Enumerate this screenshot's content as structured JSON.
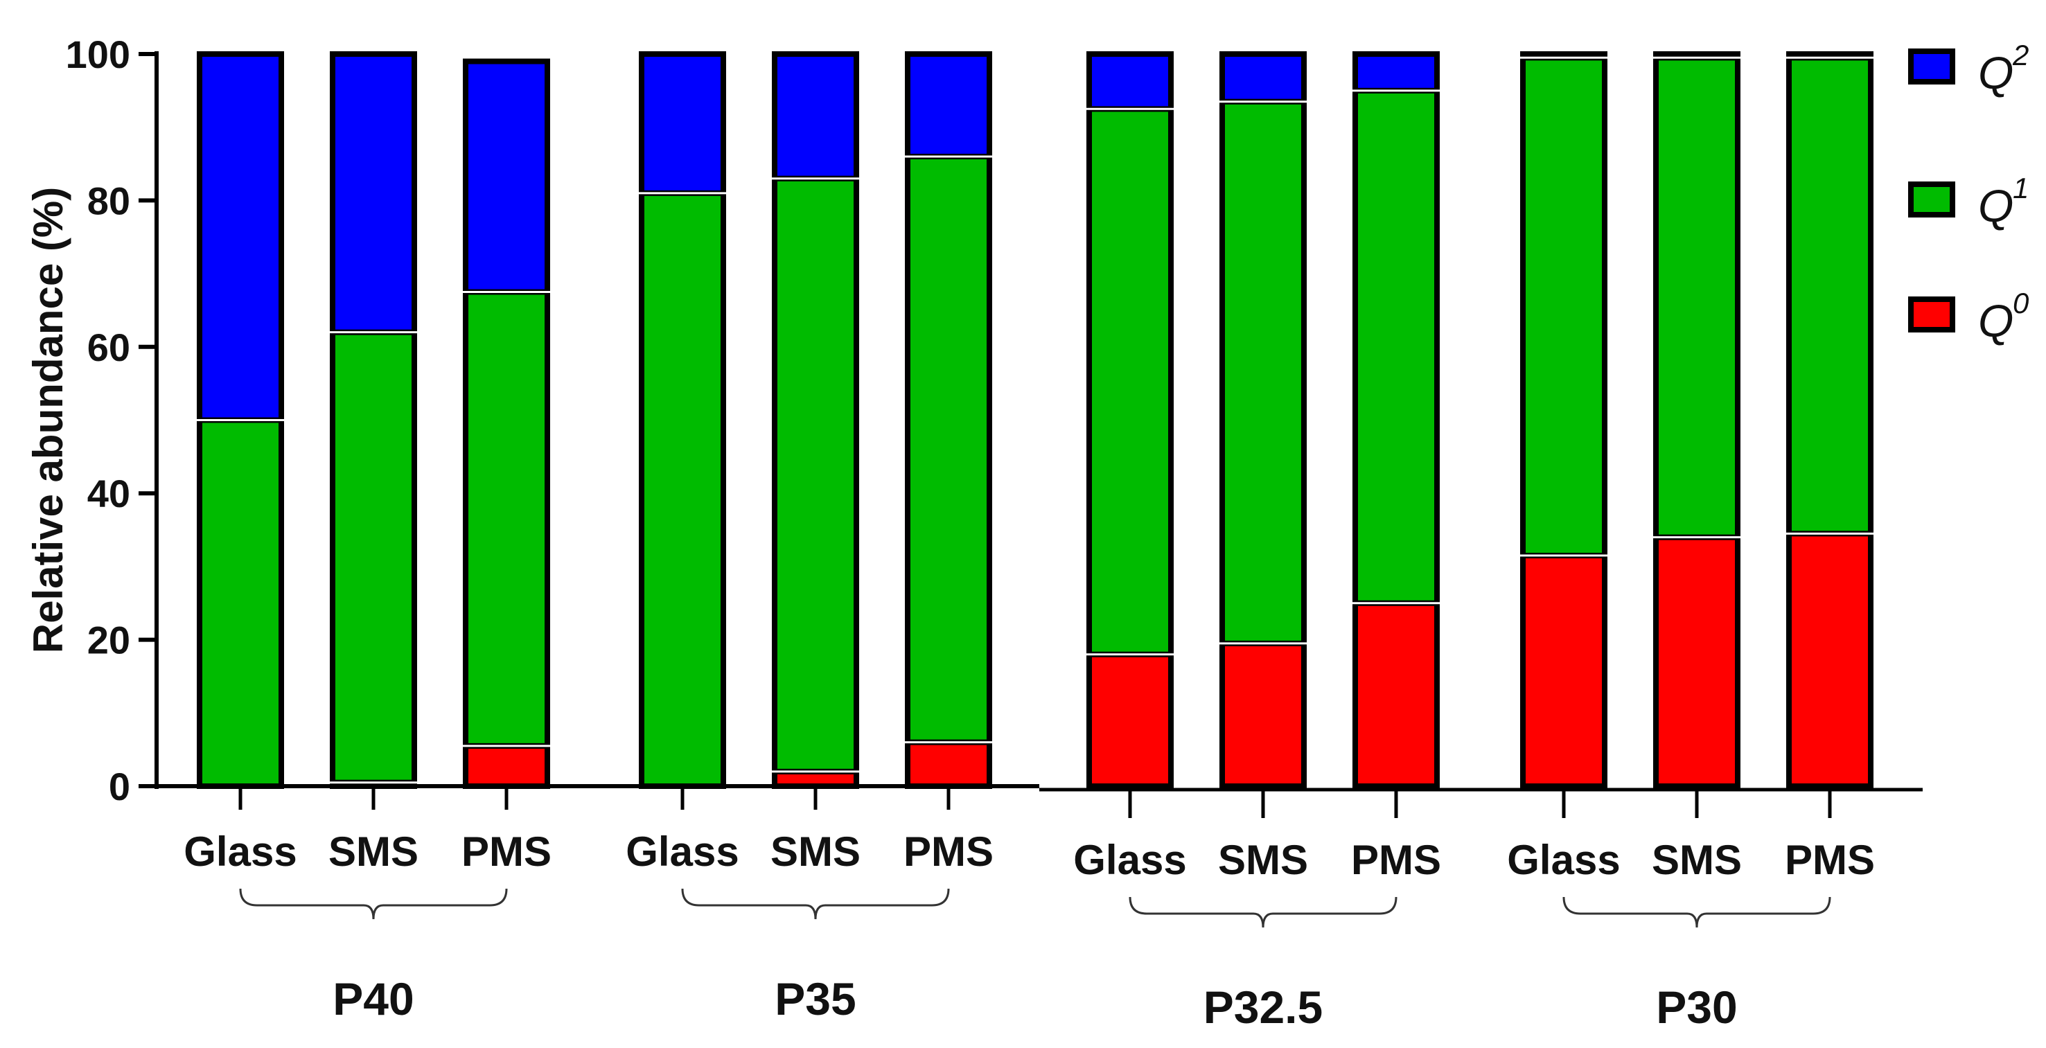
{
  "chart_data": {
    "type": "bar",
    "stacked": true,
    "title": "",
    "xlabel": "",
    "ylabel": "Relative abundance (%)",
    "ylim": [
      0,
      100
    ],
    "yticks": [
      0,
      20,
      40,
      60,
      80,
      100
    ],
    "groups": [
      {
        "name": "P40",
        "categories": [
          "Glass",
          "SMS",
          "PMS"
        ]
      },
      {
        "name": "P35",
        "categories": [
          "Glass",
          "SMS",
          "PMS"
        ]
      },
      {
        "name": "P32.5",
        "categories": [
          "Glass",
          "SMS",
          "PMS"
        ]
      },
      {
        "name": "P30",
        "categories": [
          "Glass",
          "SMS",
          "PMS"
        ]
      }
    ],
    "series": [
      {
        "name": "Q0",
        "label_base": "Q",
        "label_sup": "0",
        "color": "#ff0000",
        "values": [
          0,
          0.5,
          5.5,
          0,
          2,
          6,
          18,
          19.5,
          25,
          31.5,
          34,
          34.5
        ]
      },
      {
        "name": "Q1",
        "label_base": "Q",
        "label_sup": "1",
        "color": "#00bb00",
        "values": [
          50,
          61.5,
          62,
          81,
          81,
          80,
          74.5,
          74,
          70,
          68,
          65.5,
          65
        ]
      },
      {
        "name": "Q2",
        "label_base": "Q",
        "label_sup": "2",
        "color": "#0000ff",
        "values": [
          50,
          38,
          31.5,
          19,
          17,
          14,
          7.5,
          6.5,
          5,
          0.5,
          0.5,
          0.5
        ]
      }
    ],
    "legend_order": [
      "Q2",
      "Q1",
      "Q0"
    ],
    "legend_position": "top-right"
  }
}
